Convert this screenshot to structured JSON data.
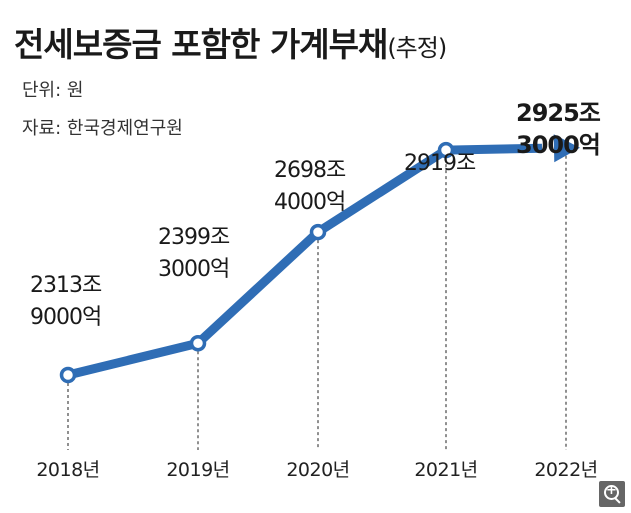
{
  "header": {
    "title": "전세보증금 포함한 가계부채",
    "title_suffix": "(추정)",
    "unit": "단위: 원",
    "source": "자료: 한국경제연구원"
  },
  "chart_data": {
    "type": "line",
    "title": "전세보증금 포함한 가계부채(추정)",
    "unit_text": "단위: 원",
    "categories": [
      "2018년",
      "2019년",
      "2020년",
      "2021년",
      "2022년"
    ],
    "values": [
      2313.9,
      2399.3,
      2698.4,
      2919.0,
      2925.3
    ],
    "value_labels": [
      [
        "2313조",
        "9000억"
      ],
      [
        "2399조",
        "3000억"
      ],
      [
        "2698조",
        "4000억"
      ],
      [
        "2919조"
      ],
      [
        "2925조",
        "3000억"
      ]
    ],
    "ylim": [
      2260,
      3000
    ],
    "last_point_estimated": true,
    "grid": false,
    "line_color": "#2f6db5",
    "marker_fill": "#ffffff"
  },
  "ui": {
    "zoom_icon": "zoom-in-icon"
  }
}
